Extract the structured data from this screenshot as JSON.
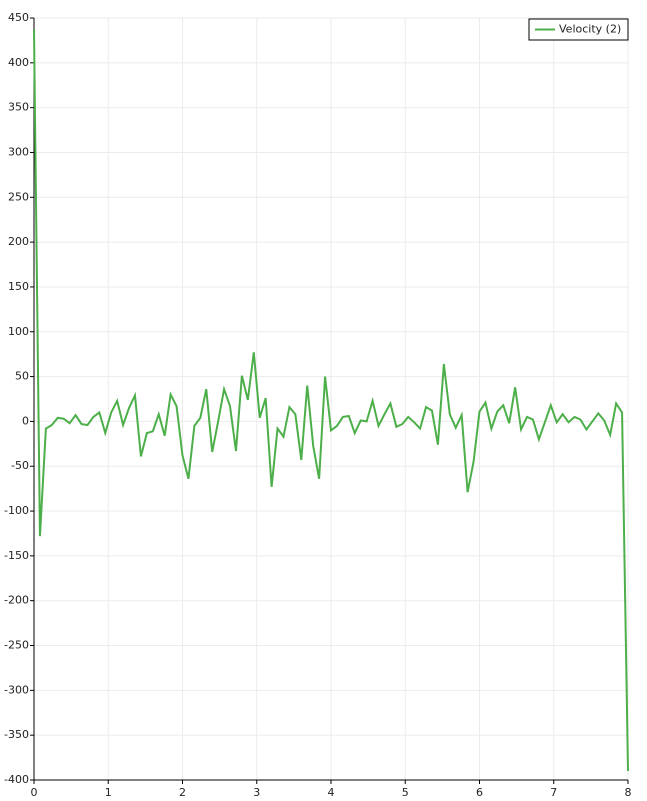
{
  "chart_data": {
    "type": "line",
    "x": [
      0,
      0.08,
      0.16,
      0.24,
      0.32,
      0.4,
      0.48,
      0.56,
      0.64,
      0.72,
      0.8,
      0.88,
      0.96,
      1.04,
      1.12,
      1.2,
      1.28,
      1.36,
      1.44,
      1.52,
      1.6,
      1.68,
      1.76,
      1.84,
      1.92,
      2,
      2.08,
      2.16,
      2.24,
      2.32,
      2.4,
      2.48,
      2.56,
      2.64,
      2.72,
      2.8,
      2.88,
      2.96,
      3.04,
      3.12,
      3.2,
      3.28,
      3.36,
      3.44,
      3.52,
      3.6,
      3.68,
      3.76,
      3.84,
      3.92,
      4,
      4.08,
      4.16,
      4.24,
      4.32,
      4.4,
      4.48,
      4.56,
      4.64,
      4.72,
      4.8,
      4.88,
      4.96,
      5.04,
      5.12,
      5.2,
      5.28,
      5.36,
      5.44,
      5.52,
      5.6,
      5.68,
      5.76,
      5.84,
      5.92,
      6,
      6.08,
      6.16,
      6.24,
      6.32,
      6.4,
      6.48,
      6.56,
      6.64,
      6.72,
      6.8,
      6.88,
      6.96,
      7.04,
      7.12,
      7.2,
      7.28,
      7.36,
      7.44,
      7.52,
      7.6,
      7.68,
      7.76,
      7.84,
      7.92,
      8
    ],
    "series": [
      {
        "name": "Velocity (2)",
        "color": "#4daf4a",
        "values": [
          437,
          -128,
          -8,
          -4,
          4,
          3,
          -2,
          7,
          -3,
          -4,
          5,
          10,
          -13,
          10,
          23,
          -4,
          15,
          29,
          -39,
          -13,
          -11,
          8,
          -16,
          30,
          17,
          -38,
          -64,
          -5,
          4,
          36,
          -34,
          0,
          36,
          17,
          -33,
          51,
          24,
          77,
          4,
          26,
          -73,
          -8,
          -17,
          16,
          8,
          -43,
          40,
          -27,
          -64,
          50,
          -10,
          -5,
          5,
          6,
          -13,
          1,
          0,
          23,
          -5,
          8,
          20,
          -6,
          -3,
          5,
          -1,
          -8,
          16,
          12,
          -26,
          64,
          8,
          -7,
          7,
          -79,
          -45,
          11,
          21,
          -8,
          11,
          18,
          -2,
          38,
          -9,
          5,
          2,
          -20,
          -1,
          18,
          -1,
          8,
          -1,
          5,
          2,
          -9,
          0,
          9,
          1,
          -15,
          20,
          10,
          -390
        ]
      }
    ],
    "xlim": [
      0,
      8
    ],
    "xticks": [
      0,
      1,
      2,
      3,
      4,
      5,
      6,
      7,
      8
    ],
    "ylim": [
      -400,
      450
    ],
    "yticks": [
      -400,
      -350,
      -300,
      -250,
      -200,
      -150,
      -100,
      -50,
      0,
      50,
      100,
      150,
      200,
      250,
      300,
      350,
      400,
      450
    ],
    "grid": true,
    "legend": "top-right"
  }
}
